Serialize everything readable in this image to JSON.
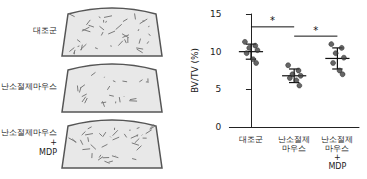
{
  "panel_labels": [
    "대조군",
    "난소절제마우스",
    "난소절제마우스\n+\nMDP"
  ],
  "chart_data": {
    "type": "scatter",
    "categories": [
      "대조군",
      "난소절제\n마우스",
      "난소절제\n마우스\n+\nMDP"
    ],
    "ylabel": "BV/TV (%)",
    "ylim": [
      0,
      15
    ],
    "yticks": [
      0,
      5,
      10,
      15
    ],
    "color": "#404040",
    "marker": "circle",
    "grid": false,
    "groups": [
      {
        "values": [
          11.3,
          10.8,
          10.5,
          10.2,
          9.8,
          9.0,
          8.5
        ],
        "mean": 10.0,
        "sd": 1.0
      },
      {
        "values": [
          8.2,
          7.5,
          7.0,
          6.8,
          6.5,
          6.2,
          5.5
        ],
        "mean": 6.8,
        "sd": 0.9
      },
      {
        "values": [
          11.0,
          10.5,
          9.8,
          9.2,
          8.5,
          7.5,
          7.0
        ],
        "mean": 9.1,
        "sd": 1.4
      }
    ],
    "significance": [
      {
        "between": [
          0,
          1
        ],
        "label": "*"
      },
      {
        "between": [
          1,
          2
        ],
        "label": "*"
      }
    ]
  }
}
